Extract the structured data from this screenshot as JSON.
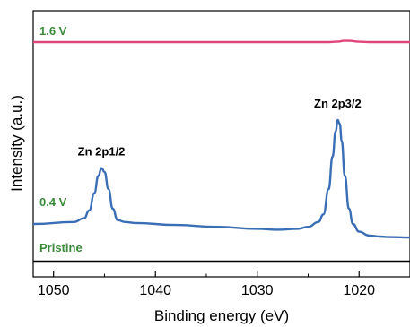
{
  "chart_data": {
    "type": "line",
    "title": "",
    "xlabel": "Binding energy (eV)",
    "ylabel": "Intensity (a.u.)",
    "xlim": [
      1052,
      1015
    ],
    "x_reversed": true,
    "y_ticks_shown": false,
    "x_ticks": [
      1050,
      1040,
      1030,
      1020
    ],
    "x_tick_labels": [
      "1050",
      "1040",
      "1030",
      "1020"
    ],
    "grid": false,
    "legend": "none",
    "series": [
      {
        "name": "1.6 V",
        "color": "#e0457b",
        "x": [
          1052,
          1030,
          1023,
          1022,
          1021.5,
          1021,
          1020,
          1019,
          1015
        ],
        "y": [
          95.5,
          95.5,
          95.5,
          95.8,
          96.2,
          96.2,
          95.7,
          95.5,
          95.5
        ]
      },
      {
        "name": "0.4 V",
        "color": "#3a6eb5",
        "x": [
          1052,
          1048,
          1047,
          1046.5,
          1046,
          1045.6,
          1045.3,
          1045,
          1044.6,
          1044.2,
          1043.7,
          1043,
          1042,
          1038,
          1034,
          1030,
          1028,
          1026,
          1025,
          1024,
          1023.5,
          1023,
          1022.6,
          1022.3,
          1022.1,
          1021.9,
          1021.7,
          1021.4,
          1021,
          1020.6,
          1020,
          1019,
          1018,
          1017,
          1015
        ],
        "y": [
          20.0,
          21.0,
          23.0,
          27.0,
          36.0,
          45.0,
          49.0,
          47.0,
          38.0,
          28.0,
          22.0,
          21.0,
          20.5,
          19.5,
          18.5,
          17.5,
          17.0,
          17.5,
          18.5,
          21.0,
          25.0,
          38.0,
          55.0,
          68.0,
          74.0,
          72.0,
          63.0,
          45.0,
          28.0,
          20.0,
          16.0,
          14.0,
          13.5,
          13.2,
          13.0
        ]
      },
      {
        "name": "Pristine",
        "color": "#000000",
        "x": [
          1052,
          1015
        ],
        "y": [
          0.5,
          0.5
        ]
      }
    ],
    "annotations": [
      {
        "text": "Zn 2p1/2",
        "x": 1045.3,
        "y": 49
      },
      {
        "text": "Zn 2p3/2",
        "x": 1022.1,
        "y": 74
      }
    ]
  }
}
